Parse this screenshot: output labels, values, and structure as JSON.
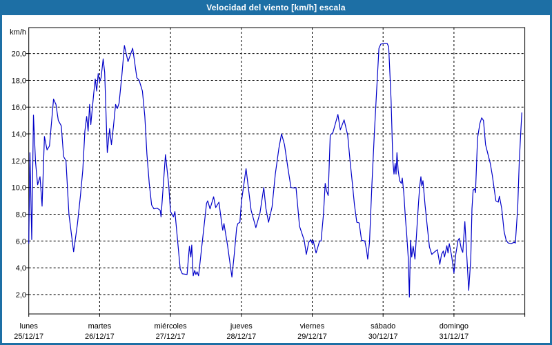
{
  "window": {
    "title": "Velocidad del viento [km/h] escala"
  },
  "colors": {
    "titlebar_bg": "#1D6FA5",
    "window_border": "#1D6FA5",
    "plot_bg": "#FFFFFF",
    "line": "#0000C8",
    "grid": "#000000",
    "axis": "#000000",
    "text": "#000000"
  },
  "chart_data": {
    "type": "line",
    "title": "Velocidad del viento [km/h] escala",
    "ylabel": "km/h",
    "grid": true,
    "legend": "none",
    "ylim": [
      0.55,
      21.94
    ],
    "y_ticks": [
      2,
      4,
      6,
      8,
      10,
      12,
      14,
      16,
      18,
      20
    ],
    "y_tick_labels": [
      "2,0",
      "4,0",
      "6,0",
      "8,0",
      "10,0",
      "12,0",
      "14,0",
      "16,0",
      "18,0",
      "20,0"
    ],
    "xlim_hours": [
      0,
      168
    ],
    "x_day_tick_hours": [
      0,
      24,
      48,
      72,
      96,
      120,
      144,
      168
    ],
    "days": [
      {
        "name": "lunes",
        "date": "25/12/17"
      },
      {
        "name": "martes",
        "date": "26/12/17"
      },
      {
        "name": "miércoles",
        "date": "27/12/17"
      },
      {
        "name": "jueves",
        "date": "28/12/17"
      },
      {
        "name": "viernes",
        "date": "29/12/17"
      },
      {
        "name": "sábado",
        "date": "30/12/17"
      },
      {
        "name": "domingo",
        "date": "31/12/17"
      }
    ],
    "series": [
      {
        "name": "Velocidad del viento [km/h]",
        "points": [
          [
            0,
            5.8
          ],
          [
            0.4,
            12.6
          ],
          [
            1,
            6.1
          ],
          [
            1.6,
            15.4
          ],
          [
            2.3,
            11.9
          ],
          [
            3,
            10.2
          ],
          [
            3.8,
            10.8
          ],
          [
            4.5,
            8.6
          ],
          [
            5.3,
            13.8
          ],
          [
            6.2,
            12.8
          ],
          [
            7,
            13.1
          ],
          [
            8.4,
            16.6
          ],
          [
            9.2,
            16.2
          ],
          [
            10,
            15
          ],
          [
            11,
            14.6
          ],
          [
            11.8,
            12.3
          ],
          [
            12.6,
            12
          ],
          [
            13.6,
            8
          ],
          [
            15.2,
            5.2
          ],
          [
            16.5,
            7.3
          ],
          [
            17.5,
            9.4
          ],
          [
            18.3,
            11.3
          ],
          [
            19,
            14.2
          ],
          [
            19.6,
            15.3
          ],
          [
            20.1,
            14.2
          ],
          [
            20.6,
            16.2
          ],
          [
            21,
            14.7
          ],
          [
            22,
            17
          ],
          [
            22.5,
            18.1
          ],
          [
            23,
            17.2
          ],
          [
            23.5,
            18.5
          ],
          [
            24,
            17.9
          ],
          [
            24.5,
            18.2
          ],
          [
            25.2,
            19.6
          ],
          [
            25.7,
            18.6
          ],
          [
            26.6,
            12.6
          ],
          [
            27.4,
            14.4
          ],
          [
            28,
            13.2
          ],
          [
            28.7,
            14.6
          ],
          [
            29.4,
            16.2
          ],
          [
            30,
            15.9
          ],
          [
            30.6,
            16.3
          ],
          [
            31.5,
            18.3
          ],
          [
            32.4,
            20.6
          ],
          [
            33.6,
            19.4
          ],
          [
            35.2,
            20.4
          ],
          [
            36.6,
            18.2
          ],
          [
            37.4,
            18
          ],
          [
            38.5,
            17.2
          ],
          [
            39.3,
            15.3
          ],
          [
            40,
            12.5
          ],
          [
            40.8,
            10.3
          ],
          [
            41.6,
            8.7
          ],
          [
            42.4,
            8.4
          ],
          [
            43.5,
            8.45
          ],
          [
            44.5,
            8.3
          ],
          [
            44.8,
            7.8
          ],
          [
            46.3,
            12.45
          ],
          [
            47.4,
            10.2
          ],
          [
            48,
            8.2
          ],
          [
            49,
            7.8
          ],
          [
            49.5,
            8.2
          ],
          [
            51.3,
            3.9
          ],
          [
            52,
            3.55
          ],
          [
            53.6,
            3.5
          ],
          [
            54.4,
            5.6
          ],
          [
            54.9,
            4.8
          ],
          [
            55.2,
            5.7
          ],
          [
            55.7,
            3.4
          ],
          [
            56.2,
            3.8
          ],
          [
            56.6,
            3.5
          ],
          [
            57,
            3.7
          ],
          [
            57.5,
            3.4
          ],
          [
            60.2,
            8.8
          ],
          [
            60.6,
            9
          ],
          [
            61.4,
            8.4
          ],
          [
            62.6,
            9.3
          ],
          [
            63.3,
            8.5
          ],
          [
            64.4,
            8.9
          ],
          [
            65.3,
            7.4
          ],
          [
            65.7,
            6.8
          ],
          [
            66.1,
            7.3
          ],
          [
            67.3,
            5.7
          ],
          [
            68.8,
            3.3
          ],
          [
            69.6,
            5
          ],
          [
            70.4,
            7
          ],
          [
            70.8,
            7.3
          ],
          [
            71.5,
            7.4
          ],
          [
            72,
            8.9
          ],
          [
            73.6,
            11.4
          ],
          [
            75.3,
            8.3
          ],
          [
            76.9,
            7
          ],
          [
            78.3,
            8.1
          ],
          [
            79.6,
            10
          ],
          [
            80.3,
            8.45
          ],
          [
            81.2,
            7.4
          ],
          [
            82.4,
            8.55
          ],
          [
            83.5,
            11
          ],
          [
            84.7,
            12.9
          ],
          [
            85.6,
            14
          ],
          [
            86.6,
            13.2
          ],
          [
            87.8,
            11.4
          ],
          [
            88.8,
            10
          ],
          [
            89.8,
            9.95
          ],
          [
            90.5,
            10
          ],
          [
            91.7,
            7.1
          ],
          [
            93.3,
            6.05
          ],
          [
            94,
            5
          ],
          [
            94.8,
            5.9
          ],
          [
            95.5,
            6.1
          ],
          [
            96,
            5.8
          ],
          [
            96.3,
            6.05
          ],
          [
            97.3,
            5.1
          ],
          [
            98.5,
            6
          ],
          [
            99,
            6
          ],
          [
            99.8,
            8
          ],
          [
            100.4,
            10.3
          ],
          [
            100.8,
            9.8
          ],
          [
            101.4,
            9.4
          ],
          [
            102.1,
            13.9
          ],
          [
            103,
            14.1
          ],
          [
            104.7,
            15.45
          ],
          [
            105.5,
            14.3
          ],
          [
            106.8,
            15.05
          ],
          [
            108,
            13.9
          ],
          [
            108.8,
            12
          ],
          [
            109.5,
            10.5
          ],
          [
            110.3,
            8.7
          ],
          [
            111.1,
            7.4
          ],
          [
            111.9,
            7.35
          ],
          [
            112.7,
            6.05
          ],
          [
            113.8,
            6
          ],
          [
            114.4,
            5.35
          ],
          [
            114.8,
            4.65
          ],
          [
            115.4,
            5.9
          ],
          [
            116.2,
            10.1
          ],
          [
            117,
            13.9
          ],
          [
            117.8,
            17.2
          ],
          [
            118.6,
            20.4
          ],
          [
            119.2,
            20.7
          ],
          [
            120,
            20.75
          ],
          [
            121.4,
            20.75
          ],
          [
            121.9,
            20.5
          ],
          [
            122.3,
            18.6
          ],
          [
            122.7,
            16.5
          ],
          [
            123.3,
            12
          ],
          [
            123.7,
            11
          ],
          [
            124.1,
            11.8
          ],
          [
            124.4,
            11
          ],
          [
            124.7,
            12.6
          ],
          [
            125.1,
            11.3
          ],
          [
            125.6,
            10.5
          ],
          [
            126.2,
            10.3
          ],
          [
            126.5,
            10.7
          ],
          [
            127,
            9.6
          ],
          [
            127.5,
            7.9
          ],
          [
            128,
            6.5
          ],
          [
            128.5,
            4.8
          ],
          [
            128.9,
            1.8
          ],
          [
            129.3,
            6.05
          ],
          [
            129.7,
            4.8
          ],
          [
            130.2,
            5.6
          ],
          [
            130.8,
            4.65
          ],
          [
            131.5,
            7.1
          ],
          [
            132,
            8.9
          ],
          [
            132.4,
            10.1
          ],
          [
            132.8,
            10.8
          ],
          [
            133.1,
            10.1
          ],
          [
            133.5,
            10.5
          ],
          [
            134.2,
            8.7
          ],
          [
            135,
            7
          ],
          [
            135.7,
            5.55
          ],
          [
            136.5,
            5
          ],
          [
            137.5,
            5.2
          ],
          [
            138.4,
            5.35
          ],
          [
            139.2,
            4.25
          ],
          [
            139.8,
            5
          ],
          [
            140.4,
            5.25
          ],
          [
            140.8,
            4.8
          ],
          [
            141.6,
            5.65
          ],
          [
            142,
            5.1
          ],
          [
            142.4,
            5.8
          ],
          [
            143.2,
            4.9
          ],
          [
            144,
            3.6
          ],
          [
            144.6,
            5
          ],
          [
            145.4,
            6.05
          ],
          [
            145.8,
            6.2
          ],
          [
            146.5,
            5.4
          ],
          [
            147,
            5.15
          ],
          [
            147.7,
            7.45
          ],
          [
            148.5,
            4.25
          ],
          [
            149,
            2.3
          ],
          [
            149.7,
            4.7
          ],
          [
            150.1,
            8.4
          ],
          [
            150.5,
            9.8
          ],
          [
            151,
            9.9
          ],
          [
            151.3,
            9.6
          ],
          [
            152,
            13.7
          ],
          [
            152.8,
            14.8
          ],
          [
            153.4,
            15.2
          ],
          [
            154,
            15
          ],
          [
            154.7,
            13.2
          ],
          [
            155.5,
            12.5
          ],
          [
            156.3,
            11.8
          ],
          [
            157,
            10.9
          ],
          [
            157.8,
            9.6
          ],
          [
            158.2,
            9
          ],
          [
            159,
            8.9
          ],
          [
            159.4,
            9.35
          ],
          [
            160.2,
            8.4
          ],
          [
            161,
            6.7
          ],
          [
            161.7,
            6.05
          ],
          [
            162.4,
            5.85
          ],
          [
            163.4,
            5.8
          ],
          [
            164.4,
            5.9
          ],
          [
            164.8,
            5.85
          ],
          [
            165.6,
            8.5
          ],
          [
            166.1,
            11.85
          ],
          [
            166.6,
            14
          ],
          [
            167,
            15.6
          ]
        ]
      }
    ]
  }
}
